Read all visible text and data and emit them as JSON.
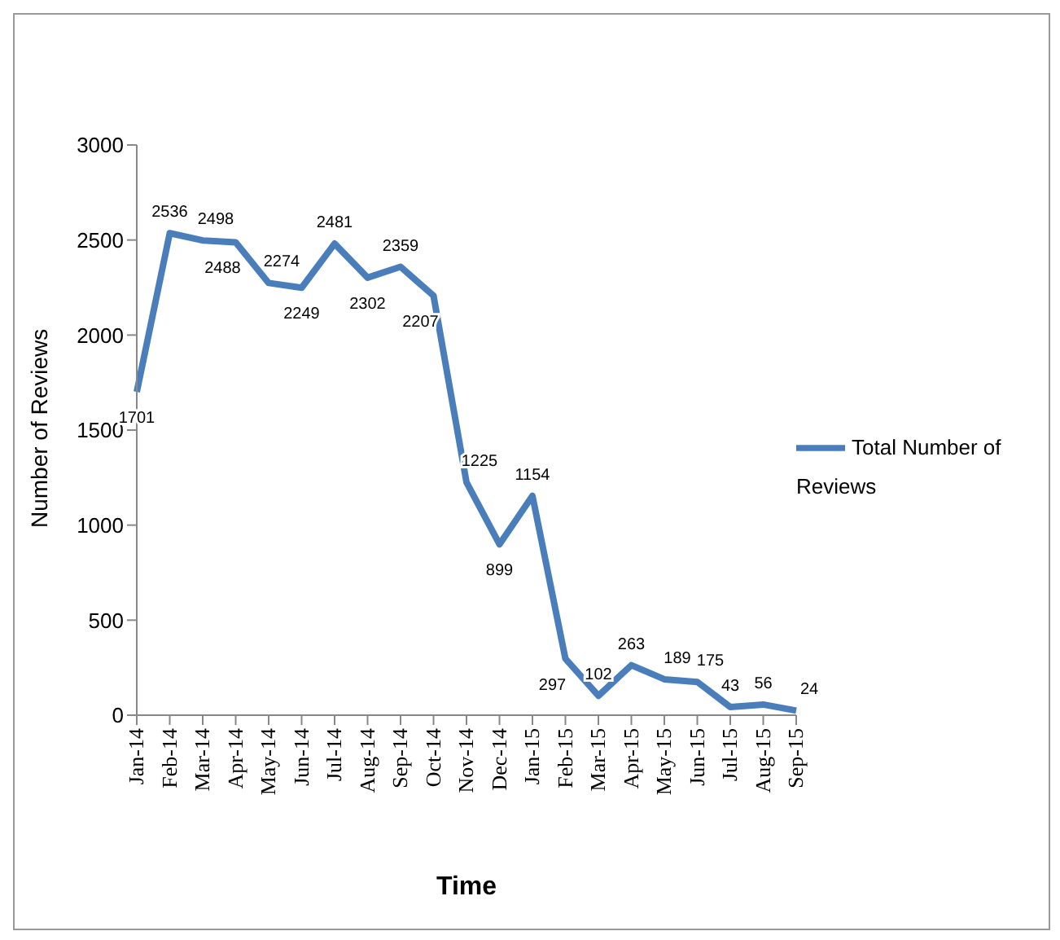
{
  "chart_data": {
    "type": "line",
    "xlabel": "Time",
    "ylabel": "Number of Reviews",
    "categories": [
      "Jan-14",
      "Feb-14",
      "Mar-14",
      "Apr-14",
      "May-14",
      "Jun-14",
      "Jul-14",
      "Aug-14",
      "Sep-14",
      "Oct-14",
      "Nov-14",
      "Dec-14",
      "Jan-15",
      "Feb-15",
      "Mar-15",
      "Apr-15",
      "May-15",
      "Jun-15",
      "Jul-15",
      "Aug-15",
      "Sep-15"
    ],
    "series": [
      {
        "name": "Total Number  of Reviews",
        "color": "#4a7ebb",
        "values": [
          1701,
          2536,
          2498,
          2488,
          2274,
          2249,
          2481,
          2302,
          2359,
          2207,
          1225,
          899,
          1154,
          297,
          102,
          263,
          189,
          175,
          43,
          56,
          24
        ]
      }
    ],
    "ylim": [
      0,
      3000
    ],
    "yticks": [
      0,
      500,
      1000,
      1500,
      2000,
      2500,
      3000
    ],
    "grid": false,
    "legend": "right",
    "marker": "none",
    "data_labels": true
  }
}
